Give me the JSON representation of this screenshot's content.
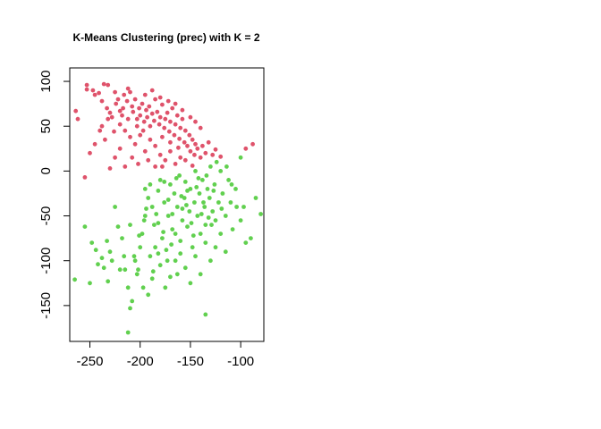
{
  "chart_data": {
    "type": "scatter",
    "title": "K-Means Clustering (prec) with K = 2",
    "xlabel": "",
    "ylabel": "",
    "xlim": [
      -270,
      -77
    ],
    "ylim": [
      -190,
      115
    ],
    "xticks": [
      -250,
      -200,
      -150,
      -100
    ],
    "yticks": [
      -150,
      -100,
      -50,
      0,
      50,
      100
    ],
    "xtick_labels": [
      "-250",
      "-200",
      "-150",
      "-100"
    ],
    "ytick_labels": [
      "-150",
      "-100",
      "-50",
      "0",
      "50",
      "100"
    ],
    "grid": false,
    "legend": "none",
    "series": [
      {
        "color": "#DF536B",
        "points": [
          [
            -264,
            67
          ],
          [
            -262,
            58
          ],
          [
            -253,
            96
          ],
          [
            -253,
            91
          ],
          [
            -247,
            90
          ],
          [
            -245,
            85
          ],
          [
            -241,
            87
          ],
          [
            -238,
            78
          ],
          [
            -236,
            97
          ],
          [
            -232,
            96
          ],
          [
            -233,
            70
          ],
          [
            -230,
            65
          ],
          [
            -228,
            60
          ],
          [
            -225,
            88
          ],
          [
            -224,
            75
          ],
          [
            -222,
            80
          ],
          [
            -220,
            67
          ],
          [
            -218,
            62
          ],
          [
            -216,
            85
          ],
          [
            -213,
            78
          ],
          [
            -212,
            92
          ],
          [
            -210,
            88
          ],
          [
            -208,
            72
          ],
          [
            -207,
            66
          ],
          [
            -205,
            80
          ],
          [
            -203,
            58
          ],
          [
            -201,
            70
          ],
          [
            -200,
            62
          ],
          [
            -198,
            75
          ],
          [
            -196,
            55
          ],
          [
            -194,
            68
          ],
          [
            -193,
            60
          ],
          [
            -191,
            72
          ],
          [
            -190,
            50
          ],
          [
            -188,
            64
          ],
          [
            -186,
            56
          ],
          [
            -185,
            80
          ],
          [
            -183,
            66
          ],
          [
            -181,
            52
          ],
          [
            -180,
            60
          ],
          [
            -178,
            74
          ],
          [
            -176,
            48
          ],
          [
            -175,
            58
          ],
          [
            -173,
            65
          ],
          [
            -171,
            44
          ],
          [
            -170,
            55
          ],
          [
            -168,
            70
          ],
          [
            -166,
            40
          ],
          [
            -165,
            52
          ],
          [
            -163,
            62
          ],
          [
            -161,
            36
          ],
          [
            -160,
            48
          ],
          [
            -158,
            58
          ],
          [
            -156,
            32
          ],
          [
            -155,
            45
          ],
          [
            -153,
            28
          ],
          [
            -151,
            40
          ],
          [
            -150,
            22
          ],
          [
            -148,
            35
          ],
          [
            -146,
            18
          ],
          [
            -145,
            30
          ],
          [
            -143,
            25
          ],
          [
            -140,
            15
          ],
          [
            -138,
            28
          ],
          [
            -135,
            20
          ],
          [
            -132,
            32
          ],
          [
            -128,
            18
          ],
          [
            -125,
            24
          ],
          [
            -120,
            16
          ],
          [
            -95,
            25
          ],
          [
            -88,
            30
          ],
          [
            -215,
            45
          ],
          [
            -210,
            38
          ],
          [
            -205,
            30
          ],
          [
            -200,
            40
          ],
          [
            -195,
            22
          ],
          [
            -190,
            35
          ],
          [
            -185,
            28
          ],
          [
            -180,
            18
          ],
          [
            -175,
            12
          ],
          [
            -170,
            22
          ],
          [
            -165,
            8
          ],
          [
            -160,
            15
          ],
          [
            -202,
            8
          ],
          [
            -208,
            15
          ],
          [
            -215,
            5
          ],
          [
            -220,
            25
          ],
          [
            -225,
            15
          ],
          [
            -230,
            3
          ],
          [
            -235,
            35
          ],
          [
            -240,
            45
          ],
          [
            -245,
            30
          ],
          [
            -250,
            20
          ],
          [
            -255,
            -7
          ],
          [
            -195,
            85
          ],
          [
            -188,
            90
          ],
          [
            -180,
            82
          ],
          [
            -172,
            78
          ],
          [
            -165,
            75
          ],
          [
            -158,
            68
          ],
          [
            -150,
            60
          ],
          [
            -145,
            55
          ],
          [
            -140,
            48
          ],
          [
            -220,
            52
          ],
          [
            -226,
            44
          ],
          [
            -232,
            58
          ],
          [
            -238,
            50
          ],
          [
            -212,
            58
          ],
          [
            -178,
            38
          ],
          [
            -170,
            32
          ],
          [
            -162,
            26
          ],
          [
            -155,
            12
          ],
          [
            -148,
            6
          ],
          [
            -185,
            5
          ],
          [
            -192,
            12
          ],
          [
            -178,
            5
          ],
          [
            -217,
            70
          ],
          [
            -203,
            50
          ],
          [
            -197,
            45
          ]
        ]
      },
      {
        "color": "#61D04F",
        "points": [
          [
            -265,
            -121
          ],
          [
            -255,
            -62
          ],
          [
            -248,
            -80
          ],
          [
            -244,
            -88
          ],
          [
            -238,
            -97
          ],
          [
            -236,
            -108
          ],
          [
            -232,
            -123
          ],
          [
            -230,
            -90
          ],
          [
            -225,
            -40
          ],
          [
            -222,
            -62
          ],
          [
            -218,
            -75
          ],
          [
            -215,
            -110
          ],
          [
            -212,
            -130
          ],
          [
            -210,
            -153
          ],
          [
            -208,
            -145
          ],
          [
            -205,
            -100
          ],
          [
            -203,
            -115
          ],
          [
            -200,
            -85
          ],
          [
            -198,
            -70
          ],
          [
            -196,
            -55
          ],
          [
            -194,
            -42
          ],
          [
            -192,
            -30
          ],
          [
            -190,
            -95
          ],
          [
            -188,
            -120
          ],
          [
            -186,
            -60
          ],
          [
            -184,
            -48
          ],
          [
            -182,
            -22
          ],
          [
            -180,
            -10
          ],
          [
            -178,
            -75
          ],
          [
            -176,
            -35
          ],
          [
            -174,
            -88
          ],
          [
            -172,
            -50
          ],
          [
            -170,
            -15
          ],
          [
            -168,
            -65
          ],
          [
            -166,
            -25
          ],
          [
            -165,
            -100
          ],
          [
            -163,
            -40
          ],
          [
            -161,
            -5
          ],
          [
            -160,
            -78
          ],
          [
            -158,
            -55
          ],
          [
            -156,
            -30
          ],
          [
            -155,
            -12
          ],
          [
            -153,
            -62
          ],
          [
            -151,
            -45
          ],
          [
            -150,
            -20
          ],
          [
            -148,
            -85
          ],
          [
            -146,
            -35
          ],
          [
            -145,
            0
          ],
          [
            -143,
            -50
          ],
          [
            -141,
            -25
          ],
          [
            -140,
            -70
          ],
          [
            -138,
            -10
          ],
          [
            -136,
            -40
          ],
          [
            -135,
            -60
          ],
          [
            -133,
            -20
          ],
          [
            -131,
            -30
          ],
          [
            -130,
            5
          ],
          [
            -128,
            -45
          ],
          [
            -126,
            -15
          ],
          [
            -125,
            -55
          ],
          [
            -122,
            -35
          ],
          [
            -120,
            0
          ],
          [
            -118,
            -25
          ],
          [
            -115,
            -50
          ],
          [
            -112,
            -10
          ],
          [
            -110,
            -35
          ],
          [
            -108,
            -65
          ],
          [
            -105,
            -20
          ],
          [
            -100,
            -55
          ],
          [
            -95,
            -80
          ],
          [
            -90,
            -75
          ],
          [
            -85,
            -30
          ],
          [
            -80,
            -48
          ],
          [
            -135,
            -160
          ],
          [
            -212,
            -180
          ],
          [
            -250,
            -125
          ],
          [
            -100,
            15
          ],
          [
            -97,
            -40
          ],
          [
            -202,
            -110
          ],
          [
            -195,
            -50
          ],
          [
            -190,
            -15
          ],
          [
            -185,
            -85
          ],
          [
            -180,
            -105
          ],
          [
            -175,
            -130
          ],
          [
            -170,
            -118
          ],
          [
            -165,
            -70
          ],
          [
            -160,
            -92
          ],
          [
            -155,
            -108
          ],
          [
            -150,
            -125
          ],
          [
            -145,
            -95
          ],
          [
            -140,
            -115
          ],
          [
            -135,
            -80
          ],
          [
            -130,
            -100
          ],
          [
            -125,
            -85
          ],
          [
            -120,
            -70
          ],
          [
            -115,
            -90
          ],
          [
            -195,
            -20
          ],
          [
            -188,
            -40
          ],
          [
            -182,
            -58
          ],
          [
            -176,
            -12
          ],
          [
            -172,
            -32
          ],
          [
            -168,
            -48
          ],
          [
            -164,
            -8
          ],
          [
            -159,
            -28
          ],
          [
            -154,
            -38
          ],
          [
            -149,
            -58
          ],
          [
            -144,
            -18
          ],
          [
            -139,
            -48
          ],
          [
            -134,
            -5
          ],
          [
            -129,
            -60
          ],
          [
            -124,
            10
          ],
          [
            -119,
            -42
          ],
          [
            -114,
            5
          ],
          [
            -109,
            -15
          ],
          [
            -104,
            -40
          ],
          [
            -206,
            -95
          ],
          [
            -201,
            -72
          ],
          [
            -197,
            -130
          ],
          [
            -192,
            -138
          ],
          [
            -187,
            -112
          ],
          [
            -182,
            -92
          ],
          [
            -177,
            -68
          ],
          [
            -173,
            -100
          ],
          [
            -169,
            -82
          ],
          [
            -163,
            -115
          ],
          [
            -158,
            -42
          ],
          [
            -153,
            -22
          ],
          [
            -147,
            -72
          ],
          [
            -142,
            -8
          ],
          [
            -137,
            -35
          ],
          [
            -132,
            -52
          ],
          [
            -127,
            -22
          ],
          [
            -216,
            -95
          ],
          [
            -220,
            -110
          ],
          [
            -228,
            -100
          ],
          [
            -233,
            -78
          ],
          [
            -242,
            -104
          ],
          [
            -210,
            -60
          ]
        ]
      }
    ]
  }
}
